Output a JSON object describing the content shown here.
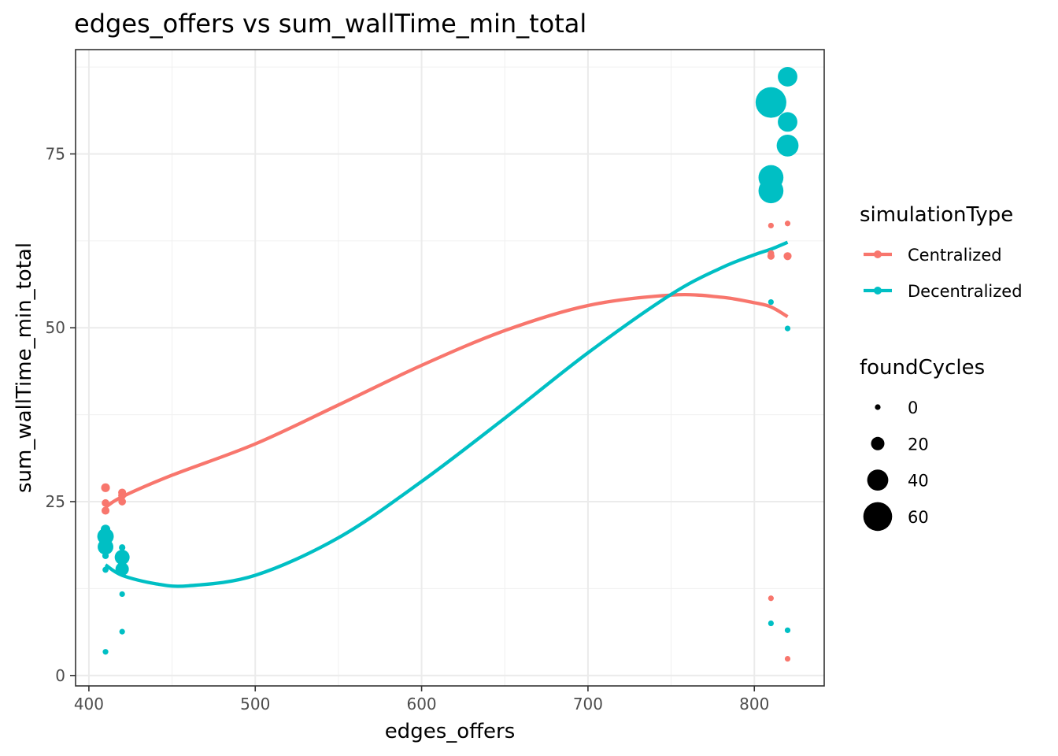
{
  "chart_data": {
    "type": "scatter",
    "title": "edges_offers  vs  sum_wallTime_min_total",
    "xlabel": "edges_offers",
    "ylabel": "sum_wallTime_min_total",
    "xlim": [
      392,
      842
    ],
    "ylim": [
      -1.5,
      90
    ],
    "x_ticks": [
      400,
      500,
      600,
      700,
      800
    ],
    "y_ticks": [
      0,
      25,
      50,
      75
    ],
    "x_tick_labels": [
      "400",
      "500",
      "600",
      "700",
      "800"
    ],
    "y_tick_labels": [
      "0",
      "25",
      "50",
      "75"
    ],
    "grid": true,
    "legend_position": "right",
    "legend": {
      "color_title": "simulationType",
      "size_title": "foundCycles",
      "size_breaks": [
        0,
        20,
        40,
        60
      ],
      "size_labels": [
        "0",
        "20",
        "40",
        "60"
      ]
    },
    "series": [
      {
        "name": "Centralized",
        "color": "#F8766D",
        "points": [
          {
            "x": 410,
            "y": 27.0,
            "size": 8
          },
          {
            "x": 410,
            "y": 24.8,
            "size": 5
          },
          {
            "x": 410,
            "y": 23.7,
            "size": 6
          },
          {
            "x": 410,
            "y": 21.0,
            "size": 4
          },
          {
            "x": 420,
            "y": 26.3,
            "size": 6
          },
          {
            "x": 420,
            "y": 25.9,
            "size": 6
          },
          {
            "x": 420,
            "y": 25.0,
            "size": 5
          },
          {
            "x": 810,
            "y": 64.7,
            "size": 0
          },
          {
            "x": 810,
            "y": 60.3,
            "size": 4
          },
          {
            "x": 810,
            "y": 60.7,
            "size": 2
          },
          {
            "x": 810,
            "y": 11.1,
            "size": 0
          },
          {
            "x": 820,
            "y": 65.0,
            "size": 0
          },
          {
            "x": 820,
            "y": 60.3,
            "size": 6
          },
          {
            "x": 820,
            "y": 2.4,
            "size": 0
          }
        ],
        "smooth": {
          "x": [
            410,
            420,
            450,
            500,
            550,
            600,
            650,
            700,
            750,
            780,
            800,
            810,
            820
          ],
          "y": [
            24.2,
            25.7,
            28.8,
            33.3,
            38.9,
            44.6,
            49.6,
            53.2,
            54.7,
            54.4,
            53.6,
            53.0,
            51.6
          ]
        }
      },
      {
        "name": "Decentralized",
        "color": "#00BFC4",
        "points": [
          {
            "x": 410,
            "y": 20.0,
            "size": 28
          },
          {
            "x": 410,
            "y": 18.5,
            "size": 26
          },
          {
            "x": 410,
            "y": 21.0,
            "size": 10
          },
          {
            "x": 410,
            "y": 17.2,
            "size": 2
          },
          {
            "x": 410,
            "y": 15.2,
            "size": 1
          },
          {
            "x": 410,
            "y": 3.4,
            "size": 0
          },
          {
            "x": 420,
            "y": 17.0,
            "size": 24
          },
          {
            "x": 420,
            "y": 15.3,
            "size": 20
          },
          {
            "x": 420,
            "y": 18.4,
            "size": 2
          },
          {
            "x": 420,
            "y": 11.7,
            "size": 0
          },
          {
            "x": 420,
            "y": 6.3,
            "size": 0
          },
          {
            "x": 810,
            "y": 82.4,
            "size": 65
          },
          {
            "x": 810,
            "y": 71.6,
            "size": 50
          },
          {
            "x": 810,
            "y": 69.7,
            "size": 50
          },
          {
            "x": 810,
            "y": 53.7,
            "size": 0
          },
          {
            "x": 810,
            "y": 7.5,
            "size": 0
          },
          {
            "x": 820,
            "y": 86.1,
            "size": 36
          },
          {
            "x": 820,
            "y": 79.6,
            "size": 36
          },
          {
            "x": 820,
            "y": 76.2,
            "size": 42
          },
          {
            "x": 820,
            "y": 49.9,
            "size": 0
          },
          {
            "x": 820,
            "y": 6.5,
            "size": 0
          }
        ],
        "smooth": {
          "x": [
            410,
            420,
            440,
            460,
            500,
            550,
            600,
            650,
            700,
            750,
            780,
            800,
            810,
            820
          ],
          "y": [
            15.9,
            14.4,
            13.2,
            12.9,
            14.4,
            19.8,
            27.9,
            37.0,
            46.4,
            54.8,
            58.6,
            60.5,
            61.3,
            62.3
          ]
        }
      }
    ]
  }
}
